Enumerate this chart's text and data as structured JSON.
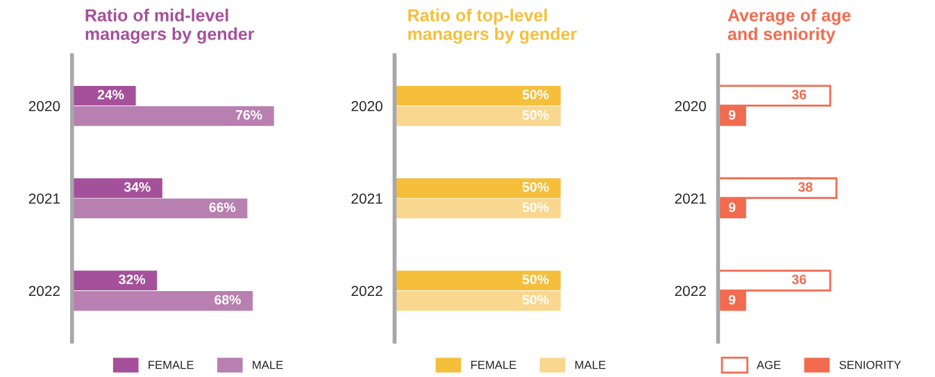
{
  "chart_data": [
    {
      "type": "bar",
      "orientation": "horizontal",
      "title": "Ratio of mid-level\nmanagers by gender",
      "categories": [
        "2020",
        "2021",
        "2022"
      ],
      "tick_labels": "y",
      "data_labels": true,
      "legend": "bottom",
      "series": [
        {
          "name": "FEMALE",
          "color": "#a5509a",
          "values": [
            24,
            34,
            32
          ],
          "value_labels": [
            "24%",
            "34%",
            "32%"
          ]
        },
        {
          "name": "MALE",
          "color": "#b87fb1",
          "values": [
            76,
            66,
            68
          ],
          "value_labels": [
            "76%",
            "66%",
            "68%"
          ]
        }
      ]
    },
    {
      "type": "bar",
      "orientation": "horizontal",
      "title": "Ratio of top-level\nmanagers by gender",
      "categories": [
        "2020",
        "2021",
        "2022"
      ],
      "tick_labels": "y",
      "data_labels": true,
      "legend": "bottom",
      "series": [
        {
          "name": "FEMALE",
          "color": "#f5bf3c",
          "values": [
            50,
            50,
            50
          ],
          "value_labels": [
            "50%",
            "50%",
            "50%"
          ]
        },
        {
          "name": "MALE",
          "color": "#f9d78e",
          "values": [
            50,
            50,
            50
          ],
          "value_labels": [
            "50%",
            "50%",
            "50%"
          ]
        }
      ]
    },
    {
      "type": "bar",
      "orientation": "horizontal",
      "title": "Average of age\nand seniority",
      "categories": [
        "2020",
        "2021",
        "2022"
      ],
      "tick_labels": "y",
      "data_labels": true,
      "legend": "bottom",
      "series": [
        {
          "name": "AGE",
          "color": "#f26b4f",
          "line_style": "solid",
          "values": [
            36,
            38,
            36
          ]
        },
        {
          "name": "SENIORITY",
          "color": "#f26b4f",
          "values": [
            9,
            9,
            9
          ]
        }
      ]
    }
  ]
}
